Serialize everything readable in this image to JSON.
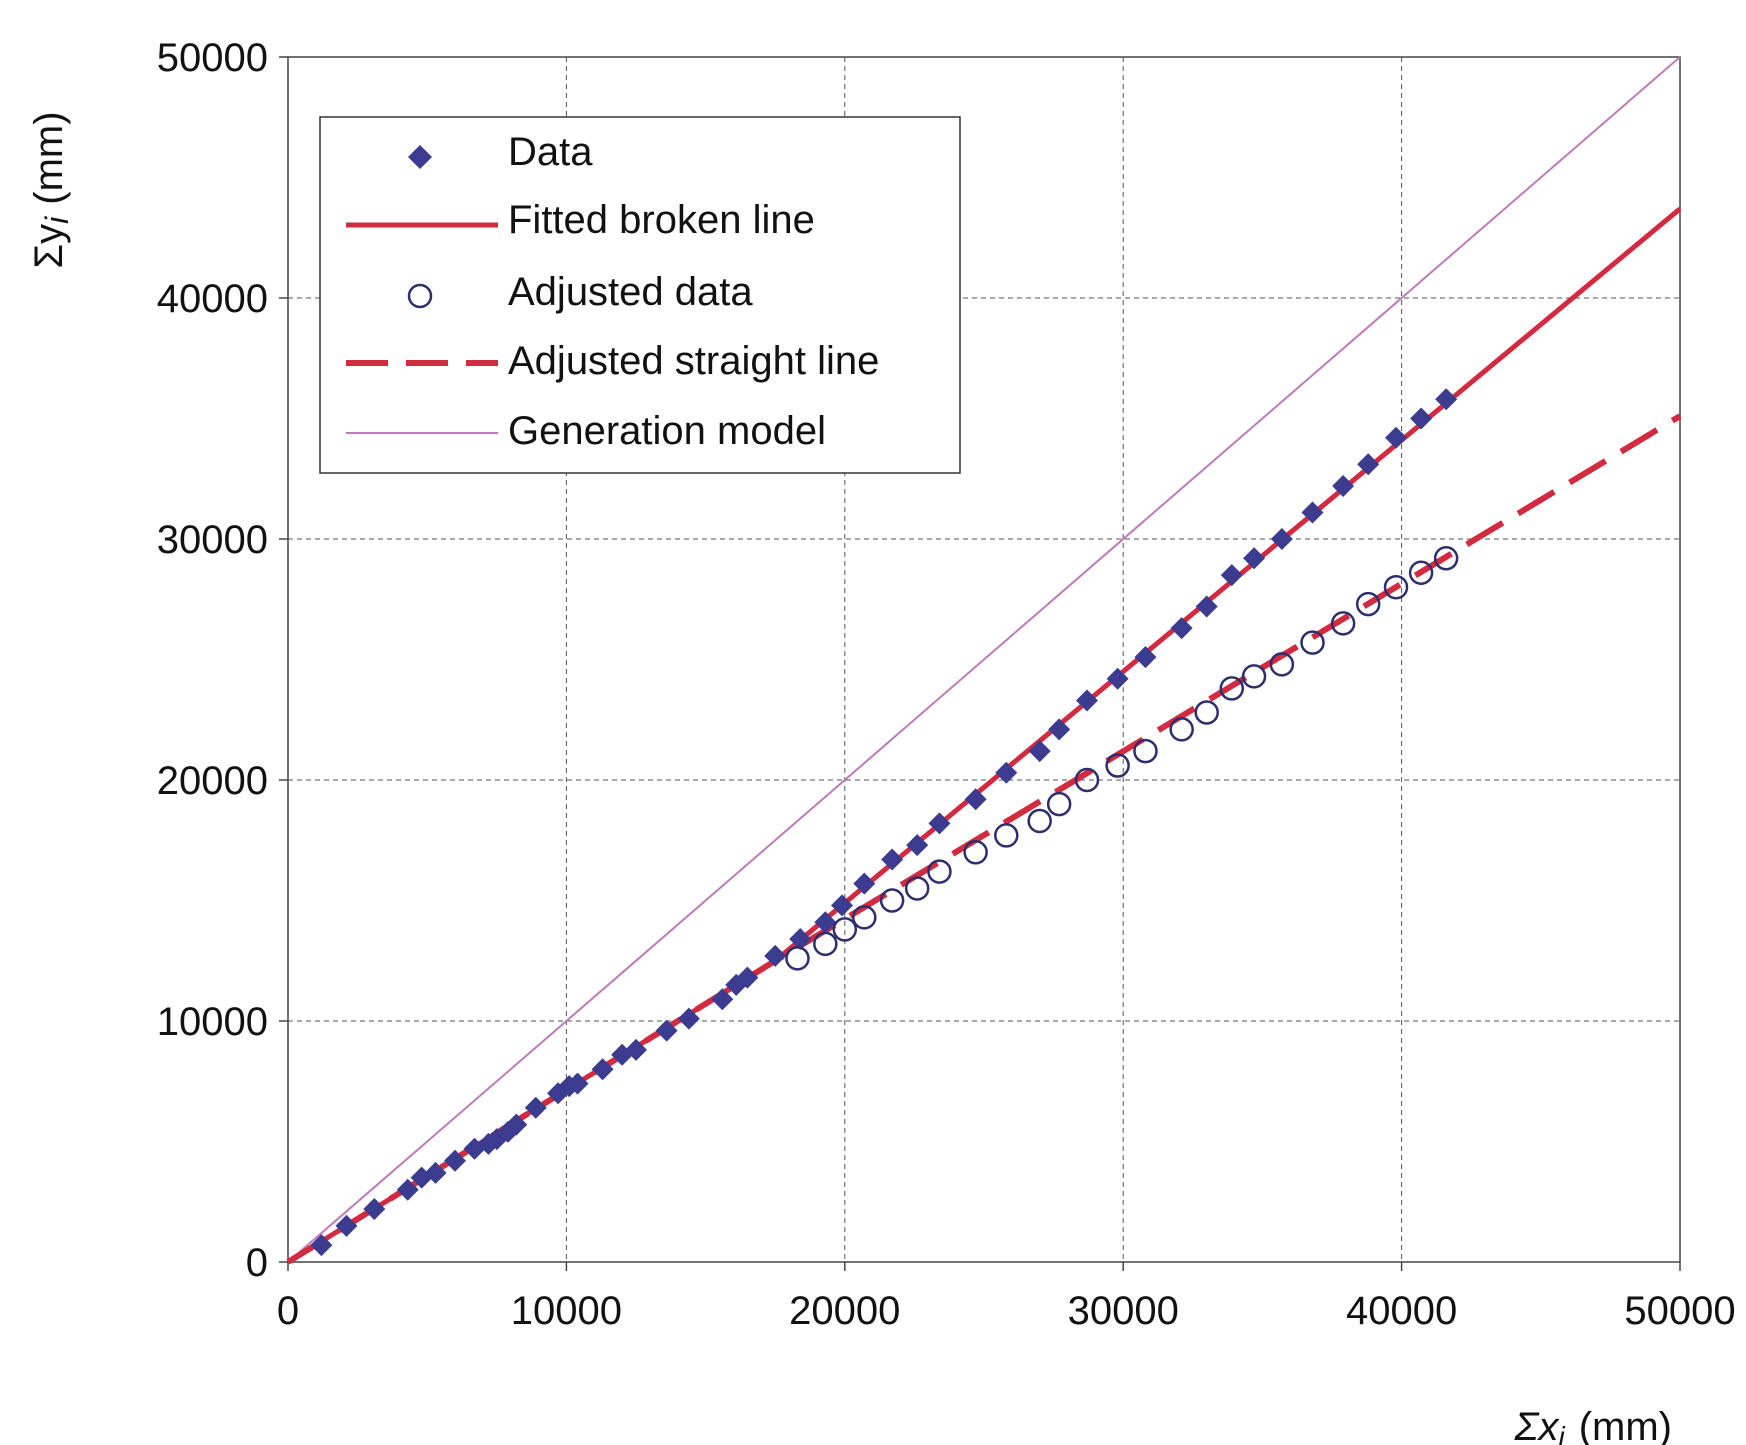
{
  "chart_data": {
    "type": "scatter",
    "title": "",
    "xlabel": "Σx",
    "xlabel_sub": "i",
    "xlabel_unit": "(mm)",
    "ylabel": "Σy",
    "ylabel_sub": "i",
    "ylabel_unit": "(mm)",
    "xlim": [
      0,
      50000
    ],
    "ylim": [
      0,
      50000
    ],
    "x_ticks": [
      "0",
      "10000",
      "20000",
      "30000",
      "40000",
      "50000"
    ],
    "y_ticks": [
      "0",
      "10000",
      "20000",
      "30000",
      "40000",
      "50000"
    ],
    "grid": true,
    "grid_style": "dashed",
    "legend_position": "top-left",
    "series": [
      {
        "name": "Data",
        "marker": "diamond",
        "color": "#3b3b8f",
        "points": [
          [
            1200,
            700
          ],
          [
            2100,
            1500
          ],
          [
            3100,
            2200
          ],
          [
            4300,
            3000
          ],
          [
            4800,
            3500
          ],
          [
            5300,
            3700
          ],
          [
            6000,
            4200
          ],
          [
            6700,
            4700
          ],
          [
            7200,
            4900
          ],
          [
            7500,
            5100
          ],
          [
            7900,
            5400
          ],
          [
            8200,
            5700
          ],
          [
            8900,
            6400
          ],
          [
            9700,
            7000
          ],
          [
            10100,
            7300
          ],
          [
            10400,
            7400
          ],
          [
            11300,
            8000
          ],
          [
            12000,
            8600
          ],
          [
            12500,
            8800
          ],
          [
            13600,
            9600
          ],
          [
            14400,
            10100
          ],
          [
            15600,
            10900
          ],
          [
            16100,
            11500
          ],
          [
            16500,
            11800
          ],
          [
            17500,
            12700
          ],
          [
            18400,
            13400
          ],
          [
            19300,
            14100
          ],
          [
            19900,
            14800
          ],
          [
            20700,
            15700
          ],
          [
            21700,
            16700
          ],
          [
            22600,
            17300
          ],
          [
            23400,
            18200
          ],
          [
            24700,
            19200
          ],
          [
            25800,
            20300
          ],
          [
            27000,
            21200
          ],
          [
            27700,
            22100
          ],
          [
            28700,
            23300
          ],
          [
            29800,
            24200
          ],
          [
            30800,
            25100
          ],
          [
            32100,
            26300
          ],
          [
            33000,
            27200
          ],
          [
            33900,
            28500
          ],
          [
            34700,
            29200
          ],
          [
            35700,
            30000
          ],
          [
            36800,
            31100
          ],
          [
            37900,
            32200
          ],
          [
            38800,
            33100
          ],
          [
            39800,
            34200
          ],
          [
            40700,
            35000
          ],
          [
            41600,
            35800
          ]
        ]
      },
      {
        "name": "Fitted broken line",
        "style": "solid",
        "color": "#d42a3f",
        "points": [
          [
            0,
            0
          ],
          [
            17500,
            12500
          ],
          [
            50000,
            43700
          ]
        ]
      },
      {
        "name": "Adjusted data",
        "marker": "open-circle",
        "color": "#2e2e6e",
        "points": [
          [
            18300,
            12600
          ],
          [
            19300,
            13200
          ],
          [
            20000,
            13800
          ],
          [
            20700,
            14300
          ],
          [
            21700,
            15000
          ],
          [
            22600,
            15500
          ],
          [
            23400,
            16200
          ],
          [
            24700,
            17000
          ],
          [
            25800,
            17700
          ],
          [
            27000,
            18300
          ],
          [
            27700,
            19000
          ],
          [
            28700,
            20000
          ],
          [
            29800,
            20600
          ],
          [
            30800,
            21200
          ],
          [
            32100,
            22100
          ],
          [
            33000,
            22800
          ],
          [
            33900,
            23800
          ],
          [
            34700,
            24300
          ],
          [
            35700,
            24800
          ],
          [
            36800,
            25700
          ],
          [
            37900,
            26500
          ],
          [
            38800,
            27300
          ],
          [
            39800,
            28000
          ],
          [
            40700,
            28600
          ],
          [
            41600,
            29200
          ]
        ]
      },
      {
        "name": "Adjusted straight line",
        "style": "dashed",
        "color": "#d42a3f",
        "points": [
          [
            0,
            0
          ],
          [
            17500,
            12500
          ],
          [
            50000,
            35100
          ]
        ]
      },
      {
        "name": "Generation model",
        "style": "solid-thin",
        "color": "#c07ab8",
        "points": [
          [
            0,
            0
          ],
          [
            50000,
            50000
          ]
        ]
      }
    ]
  }
}
